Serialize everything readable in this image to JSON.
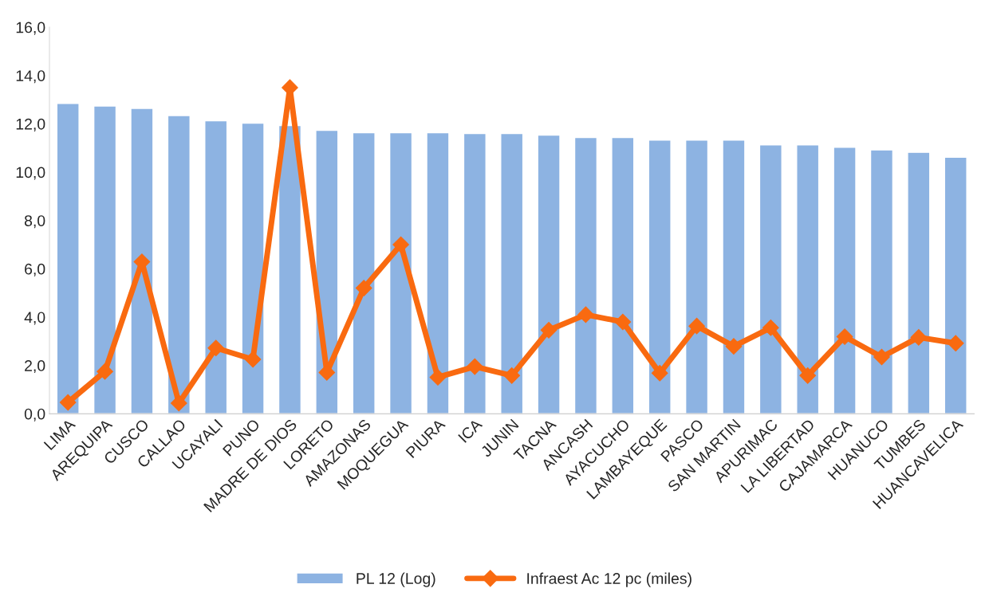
{
  "chart_data": {
    "type": "bar",
    "categories": [
      "LIMA",
      "AREQUIPA",
      "CUSCO",
      "CALLAO",
      "UCAYALI",
      "PUNO",
      "MADRE DE DIOS",
      "LORETO",
      "AMAZONAS",
      "MOQUEGUA",
      "PIURA",
      "ICA",
      "JUNIN",
      "TACNA",
      "ANCASH",
      "AYACUCHO",
      "LAMBAYEQUE",
      "PASCO",
      "SAN MARTIN",
      "APURIMAC",
      "LA LIBERTAD",
      "CAJAMARCA",
      "HUANUCO",
      "TUMBES",
      "HUANCAVELICA"
    ],
    "series": [
      {
        "name": "PL 12 (Log)",
        "color": "#8db3e2",
        "values": [
          12.84,
          12.74,
          12.64,
          12.34,
          12.13,
          12.03,
          11.93,
          11.73,
          11.63,
          11.63,
          11.63,
          11.6,
          11.6,
          11.53,
          11.43,
          11.43,
          11.33,
          11.33,
          11.33,
          11.13,
          11.13,
          11.03,
          10.92,
          10.82,
          10.62
        ]
      },
      {
        "name": "Infraest Ac 12 pc (miles)",
        "type": "line",
        "color": "#f96a10",
        "marker": "diamond",
        "values": [
          0.47,
          1.75,
          6.29,
          0.44,
          2.72,
          2.25,
          13.5,
          1.71,
          5.2,
          7.0,
          1.51,
          1.95,
          1.58,
          3.46,
          4.1,
          3.8,
          1.68,
          3.63,
          2.79,
          3.56,
          1.58,
          3.19,
          2.35,
          3.16,
          2.92
        ]
      }
    ],
    "ylim": [
      0,
      16
    ],
    "yticks": [
      {
        "value": 0,
        "label": "0,0"
      },
      {
        "value": 2,
        "label": "2,0"
      },
      {
        "value": 4,
        "label": "4,0"
      },
      {
        "value": 6,
        "label": "6,0"
      },
      {
        "value": 8,
        "label": "8,0"
      },
      {
        "value": 10,
        "label": "10,0"
      },
      {
        "value": 12,
        "label": "12,0"
      },
      {
        "value": 14,
        "label": "14,0"
      },
      {
        "value": 16,
        "label": "16,0"
      }
    ],
    "grid": false,
    "legend": "bottom"
  }
}
